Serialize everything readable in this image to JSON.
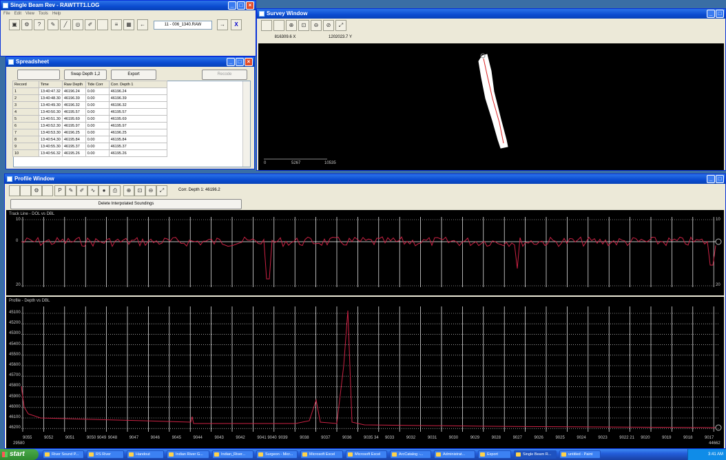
{
  "single_beam": {
    "title": "Single Beam Rev - RAWTTT1.LOG",
    "menu": [
      "File",
      "Edit",
      "View",
      "Tools",
      "Help"
    ],
    "filename": "11 - 006_1340.RAW",
    "arrow_left": "←",
    "arrow_right": "→",
    "close_x": "X"
  },
  "spreadsheet": {
    "title": "Spreadsheet",
    "buttons": {
      "left": "",
      "swap": "Swap Depth 1,2",
      "export": "Export",
      "right": "Recode"
    },
    "columns": [
      "Record",
      "Time",
      "Raw Depth",
      "Tide Corr",
      "Corr. Depth 1"
    ],
    "rows": [
      [
        "1",
        "13:40:47.32",
        "46196.24",
        "0.00",
        "46196.24"
      ],
      [
        "2",
        "13:40:48.30",
        "46196.39",
        "0.00",
        "46196.39"
      ],
      [
        "3",
        "13:40:49.30",
        "46196.32",
        "0.00",
        "46196.32"
      ],
      [
        "4",
        "13:40:50.30",
        "46195.57",
        "0.00",
        "46195.57"
      ],
      [
        "5",
        "13:40:51.30",
        "46195.69",
        "0.00",
        "46195.69"
      ],
      [
        "6",
        "13:40:52.30",
        "46195.97",
        "0.00",
        "46195.97"
      ],
      [
        "7",
        "13:40:53.30",
        "46196.25",
        "0.00",
        "46196.25"
      ],
      [
        "8",
        "13:40:54.30",
        "46195.84",
        "0.00",
        "46195.84"
      ],
      [
        "9",
        "13:40:55.30",
        "46195.37",
        "0.00",
        "46195.37"
      ],
      [
        "10",
        "13:40:56.32",
        "46195.26",
        "0.00",
        "46195.26"
      ]
    ]
  },
  "survey": {
    "title": "Survey Window",
    "coord_x": "816309.6 X",
    "coord_y": "1202023.7 Y",
    "scale_labels": [
      "0",
      "5267",
      "10535"
    ]
  },
  "profile": {
    "title": "Profile Window",
    "corr_depth": "Corr. Depth 1: 46196.2",
    "delete_btn": "Delete Interpolated Soundings",
    "track_label": "Track Line - DOL vs DBL",
    "track_top": "10",
    "track_mid": "0",
    "track_bot": "20",
    "track_right_top": "10",
    "track_right_bot": "20",
    "depth_label": "Profile - Depth vs DBL",
    "depth_ticks": [
      "45100",
      "45200",
      "45300",
      "45400",
      "45500",
      "45600",
      "45700",
      "45800",
      "45900",
      "46000",
      "46100",
      "46200"
    ],
    "x_ticks": [
      "9055",
      "9052",
      "9051",
      "9050 9049",
      "9048",
      "9047",
      "9046",
      "9045",
      "9044",
      "9043",
      "9042",
      "9041 9040",
      "9039",
      "9038",
      "9037",
      "9036",
      "9035 34",
      "9033",
      "9032",
      "9031",
      "9030",
      "9029",
      "9028",
      "9027",
      "9026",
      "9025",
      "9024",
      "9023",
      "9022 21",
      "9020",
      "9019",
      "9018",
      "9017"
    ],
    "x_left_sub": "29580",
    "x_right_sub": "44662"
  },
  "taskbar": {
    "start": "start",
    "items": [
      "River Sound P...",
      "RS River",
      "Handout",
      "Indian River G...",
      "Indian_River...",
      "Surgeon - Micr...",
      "Microsoft Excel",
      "Microsoft Excel",
      "ArcCatalog -...",
      "Administrat...",
      "Export",
      "Single Beam R...",
      "untitled - Paint"
    ],
    "clock": "3:41 AM"
  },
  "colors": {
    "titlebar": "#0a4bd0",
    "plot_line": "#cc2244",
    "grid": "#ffffff"
  }
}
